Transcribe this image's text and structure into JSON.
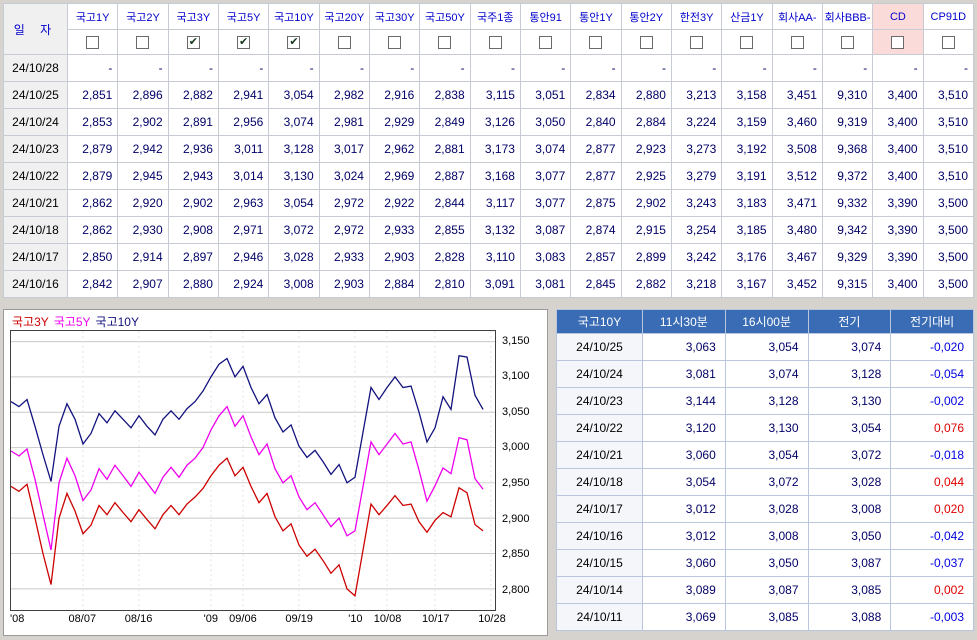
{
  "colors": {
    "bg": "#d6d3ce",
    "header_text": "#0000cc",
    "value_text": "#000066",
    "date_cell_bg": "#f0f0f0",
    "cd_highlight": "#fbdada",
    "right_header_bg": "#3a6cb5",
    "positive": "#e00000",
    "negative": "#0000e0"
  },
  "top_table": {
    "date_header": "일 자",
    "check_glyph": "✔",
    "columns": [
      {
        "label": "국고1Y",
        "checked": false,
        "highlight": false
      },
      {
        "label": "국고2Y",
        "checked": false,
        "highlight": false
      },
      {
        "label": "국고3Y",
        "checked": true,
        "highlight": false
      },
      {
        "label": "국고5Y",
        "checked": true,
        "highlight": false
      },
      {
        "label": "국고10Y",
        "checked": true,
        "highlight": false
      },
      {
        "label": "국고20Y",
        "checked": false,
        "highlight": false
      },
      {
        "label": "국고30Y",
        "checked": false,
        "highlight": false
      },
      {
        "label": "국고50Y",
        "checked": false,
        "highlight": false
      },
      {
        "label": "국주1종",
        "checked": false,
        "highlight": false
      },
      {
        "label": "통안91",
        "checked": false,
        "highlight": false
      },
      {
        "label": "통안1Y",
        "checked": false,
        "highlight": false
      },
      {
        "label": "통안2Y",
        "checked": false,
        "highlight": false
      },
      {
        "label": "한전3Y",
        "checked": false,
        "highlight": false
      },
      {
        "label": "산금1Y",
        "checked": false,
        "highlight": false
      },
      {
        "label": "회사AA-",
        "checked": false,
        "highlight": false
      },
      {
        "label": "회사BBB-",
        "checked": false,
        "highlight": false
      },
      {
        "label": "CD",
        "checked": false,
        "highlight": true
      },
      {
        "label": "CP91D",
        "checked": false,
        "highlight": false
      }
    ],
    "rows": [
      {
        "date": "24/10/28",
        "values": [
          "-",
          "-",
          "-",
          "-",
          "-",
          "-",
          "-",
          "-",
          "-",
          "-",
          "-",
          "-",
          "-",
          "-",
          "-",
          "-",
          "-",
          "-"
        ]
      },
      {
        "date": "24/10/25",
        "values": [
          "2,851",
          "2,896",
          "2,882",
          "2,941",
          "3,054",
          "2,982",
          "2,916",
          "2,838",
          "3,115",
          "3,051",
          "2,834",
          "2,880",
          "3,213",
          "3,158",
          "3,451",
          "9,310",
          "3,400",
          "3,510"
        ]
      },
      {
        "date": "24/10/24",
        "values": [
          "2,853",
          "2,902",
          "2,891",
          "2,956",
          "3,074",
          "2,981",
          "2,929",
          "2,849",
          "3,126",
          "3,050",
          "2,840",
          "2,884",
          "3,224",
          "3,159",
          "3,460",
          "9,319",
          "3,400",
          "3,510"
        ]
      },
      {
        "date": "24/10/23",
        "values": [
          "2,879",
          "2,942",
          "2,936",
          "3,011",
          "3,128",
          "3,017",
          "2,962",
          "2,881",
          "3,173",
          "3,074",
          "2,877",
          "2,923",
          "3,273",
          "3,192",
          "3,508",
          "9,368",
          "3,400",
          "3,510"
        ]
      },
      {
        "date": "24/10/22",
        "values": [
          "2,879",
          "2,945",
          "2,943",
          "3,014",
          "3,130",
          "3,024",
          "2,969",
          "2,887",
          "3,168",
          "3,077",
          "2,877",
          "2,925",
          "3,279",
          "3,191",
          "3,512",
          "9,372",
          "3,400",
          "3,510"
        ]
      },
      {
        "date": "24/10/21",
        "values": [
          "2,862",
          "2,920",
          "2,902",
          "2,963",
          "3,054",
          "2,972",
          "2,922",
          "2,844",
          "3,117",
          "3,077",
          "2,875",
          "2,902",
          "3,243",
          "3,183",
          "3,471",
          "9,332",
          "3,390",
          "3,500"
        ]
      },
      {
        "date": "24/10/18",
        "values": [
          "2,862",
          "2,930",
          "2,908",
          "2,971",
          "3,072",
          "2,972",
          "2,933",
          "2,855",
          "3,132",
          "3,087",
          "2,874",
          "2,915",
          "3,254",
          "3,185",
          "3,480",
          "9,342",
          "3,390",
          "3,500"
        ]
      },
      {
        "date": "24/10/17",
        "values": [
          "2,850",
          "2,914",
          "2,897",
          "2,946",
          "3,028",
          "2,933",
          "2,903",
          "2,828",
          "3,110",
          "3,083",
          "2,857",
          "2,899",
          "3,242",
          "3,176",
          "3,467",
          "9,329",
          "3,390",
          "3,500"
        ]
      },
      {
        "date": "24/10/16",
        "values": [
          "2,842",
          "2,907",
          "2,880",
          "2,924",
          "3,008",
          "2,903",
          "2,884",
          "2,810",
          "3,091",
          "3,081",
          "2,845",
          "2,882",
          "3,218",
          "3,167",
          "3,452",
          "9,315",
          "3,400",
          "3,500"
        ]
      }
    ]
  },
  "chart_data": {
    "type": "line",
    "title": "",
    "xlabel": "",
    "ylabel": "",
    "grid": true,
    "legend_position": "top-left",
    "y_min": 2770,
    "y_max": 3165,
    "y_ticks": [
      3150,
      3100,
      3050,
      3000,
      2950,
      2900,
      2850,
      2800
    ],
    "x_max": 60.5,
    "x_ticks": [
      {
        "label": "'08",
        "pos": 0
      },
      {
        "label": "08/07",
        "pos": 9
      },
      {
        "label": "08/16",
        "pos": 16
      },
      {
        "label": "'09",
        "pos": 25
      },
      {
        "label": "09/06",
        "pos": 29
      },
      {
        "label": "09/19",
        "pos": 36
      },
      {
        "label": "'10",
        "pos": 43
      },
      {
        "label": "10/08",
        "pos": 47
      },
      {
        "label": "10/17",
        "pos": 53
      },
      {
        "label": "10/28",
        "pos": 60
      }
    ],
    "series": [
      {
        "name": "국고3Y",
        "color": "#cc0000",
        "values": [
          2945,
          2938,
          2948,
          2900,
          2850,
          2806,
          2900,
          2935,
          2910,
          2878,
          2890,
          2918,
          2905,
          2922,
          2908,
          2895,
          2912,
          2898,
          2885,
          2905,
          2918,
          2905,
          2920,
          2930,
          2942,
          2960,
          2975,
          2985,
          2960,
          2972,
          2945,
          2922,
          2935,
          2902,
          2882,
          2892,
          2862,
          2846,
          2856,
          2840,
          2822,
          2834,
          2800,
          2790,
          2855,
          2920,
          2905,
          2918,
          2932,
          2918,
          2920,
          2895,
          2880,
          2897,
          2908,
          2902,
          2943,
          2936,
          2891,
          2882
        ]
      },
      {
        "name": "국고5Y",
        "color": "#ee00ee",
        "values": [
          2995,
          2988,
          2998,
          2955,
          2905,
          2855,
          2950,
          2985,
          2960,
          2925,
          2940,
          2970,
          2955,
          2975,
          2960,
          2945,
          2965,
          2950,
          2935,
          2958,
          2972,
          2958,
          2975,
          2985,
          3000,
          3025,
          3045,
          3058,
          3030,
          3045,
          3015,
          2990,
          3005,
          2970,
          2950,
          2960,
          2930,
          2912,
          2922,
          2905,
          2888,
          2900,
          2875,
          2882,
          2945,
          3008,
          2990,
          3005,
          3020,
          3005,
          3008,
          2968,
          2924,
          2946,
          2971,
          2963,
          3014,
          3011,
          2956,
          2941
        ]
      },
      {
        "name": "국고10Y",
        "color": "#12127e",
        "values": [
          3065,
          3058,
          3068,
          3030,
          2990,
          2952,
          3030,
          3062,
          3040,
          3005,
          3020,
          3048,
          3035,
          3052,
          3040,
          3028,
          3045,
          3030,
          3018,
          3040,
          3052,
          3040,
          3055,
          3065,
          3080,
          3100,
          3118,
          3126,
          3100,
          3115,
          3085,
          3062,
          3075,
          3042,
          3022,
          3032,
          3002,
          2986,
          2996,
          2980,
          2962,
          2976,
          2950,
          2958,
          3022,
          3085,
          3068,
          3085,
          3100,
          3085,
          3087,
          3050,
          3008,
          3028,
          3072,
          3054,
          3130,
          3128,
          3074,
          3054
        ]
      }
    ]
  },
  "right_table": {
    "headers": [
      "국고10Y",
      "11시30분",
      "16시00분",
      "전기",
      "전기대비"
    ],
    "rows": [
      {
        "date": "24/10/25",
        "v1130": "3,063",
        "v1600": "3,054",
        "prev": "3,074",
        "diff": "-0,020"
      },
      {
        "date": "24/10/24",
        "v1130": "3,081",
        "v1600": "3,074",
        "prev": "3,128",
        "diff": "-0,054"
      },
      {
        "date": "24/10/23",
        "v1130": "3,144",
        "v1600": "3,128",
        "prev": "3,130",
        "diff": "-0,002"
      },
      {
        "date": "24/10/22",
        "v1130": "3,120",
        "v1600": "3,130",
        "prev": "3,054",
        "diff": "0,076"
      },
      {
        "date": "24/10/21",
        "v1130": "3,060",
        "v1600": "3,054",
        "prev": "3,072",
        "diff": "-0,018"
      },
      {
        "date": "24/10/18",
        "v1130": "3,054",
        "v1600": "3,072",
        "prev": "3,028",
        "diff": "0,044"
      },
      {
        "date": "24/10/17",
        "v1130": "3,012",
        "v1600": "3,028",
        "prev": "3,008",
        "diff": "0,020"
      },
      {
        "date": "24/10/16",
        "v1130": "3,012",
        "v1600": "3,008",
        "prev": "3,050",
        "diff": "-0,042"
      },
      {
        "date": "24/10/15",
        "v1130": "3,060",
        "v1600": "3,050",
        "prev": "3,087",
        "diff": "-0,037"
      },
      {
        "date": "24/10/14",
        "v1130": "3,089",
        "v1600": "3,087",
        "prev": "3,085",
        "diff": "0,002"
      },
      {
        "date": "24/10/11",
        "v1130": "3,069",
        "v1600": "3,085",
        "prev": "3,088",
        "diff": "-0,003"
      }
    ]
  }
}
